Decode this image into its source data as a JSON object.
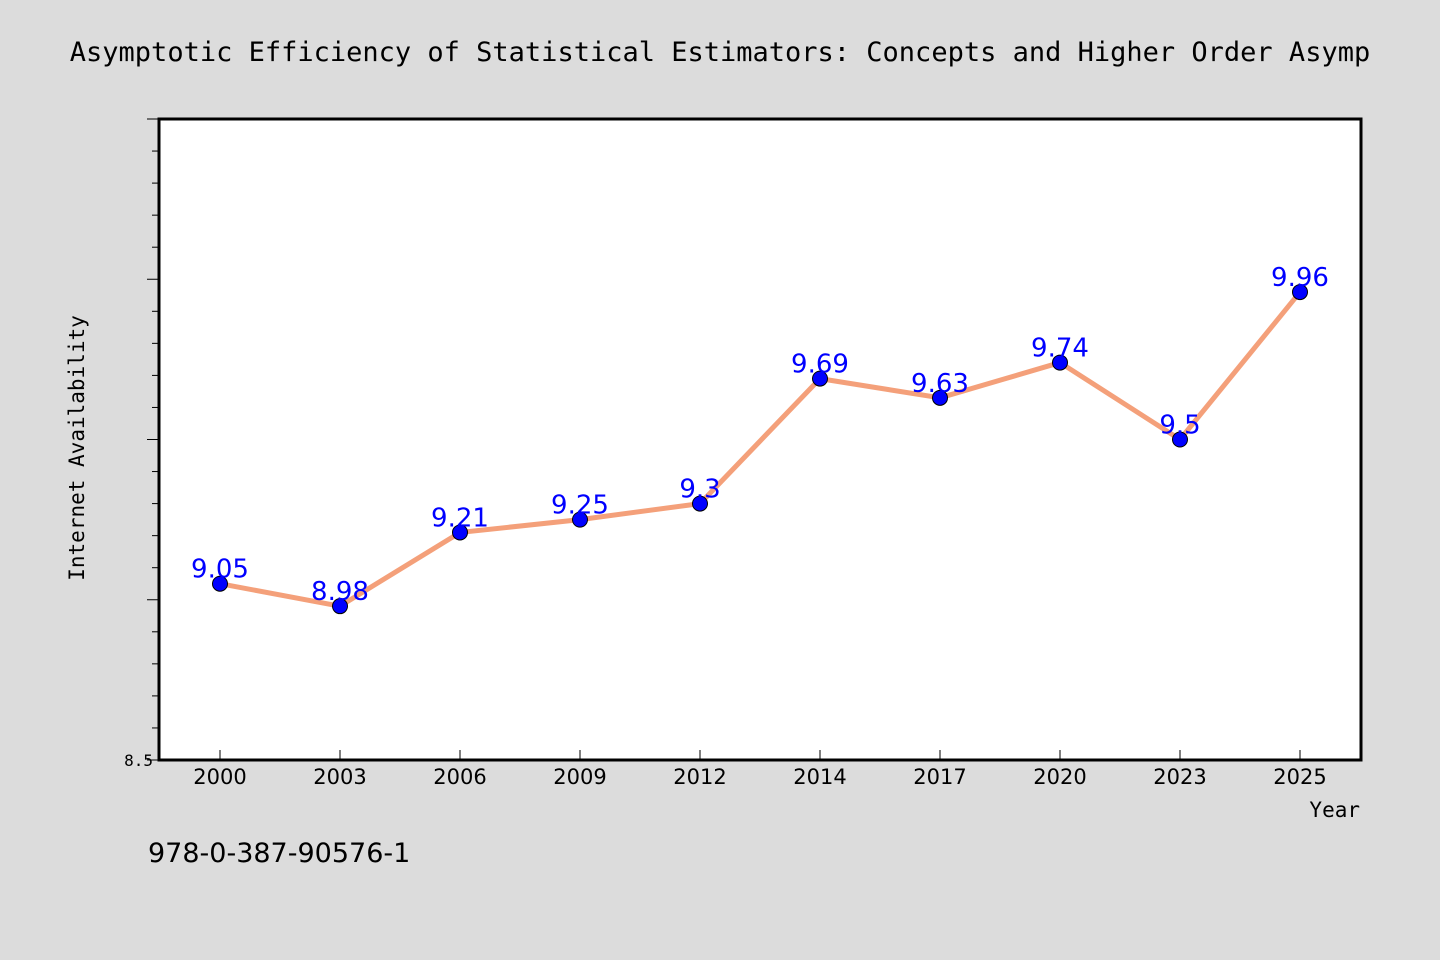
{
  "chart_data": {
    "type": "line",
    "title": "Asymptotic Efficiency of Statistical Estimators: Concepts and Higher Order Asymp",
    "xlabel": "Year",
    "ylabel": "Internet Availability",
    "categories": [
      "2000",
      "2003",
      "2006",
      "2009",
      "2012",
      "2014",
      "2017",
      "2020",
      "2023",
      "2025"
    ],
    "series": [
      {
        "values": [
          9.05,
          8.98,
          9.21,
          9.25,
          9.3,
          9.69,
          9.63,
          9.74,
          9.5,
          9.96
        ]
      }
    ],
    "data_labels": [
      "9.05",
      "8.98",
      "9.21",
      "9.25",
      "9.3",
      "9.69",
      "9.63",
      "9.74",
      "9.5",
      "9.96"
    ],
    "ylim": [
      8.5,
      10.5
    ],
    "yticks_labeled": [
      "8.5"
    ],
    "grid": false,
    "legend": "none",
    "colors": {
      "line": "#f4a07a",
      "marker": "#0000ff",
      "marker_edge": "#000000",
      "data_label": "#0000ff",
      "background": "#dcdcdc",
      "plot_background": "#ffffff"
    }
  },
  "footer_text": "978-0-387-90576-1"
}
